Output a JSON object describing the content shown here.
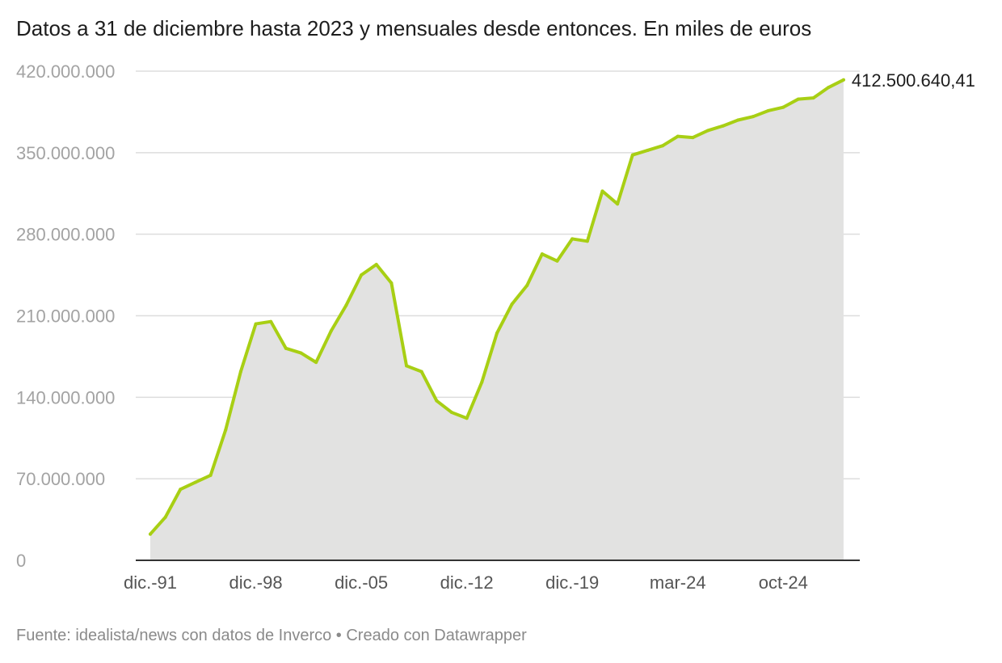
{
  "title": "Datos a 31 de diciembre hasta 2023 y mensuales desde entonces. En miles de euros",
  "footer": {
    "text": "Fuente: idealista/news con datos de Inverco • Creado con Datawrapper"
  },
  "colors": {
    "line": "#a8cf14",
    "area": "#e2e2e1",
    "grid": "#dddddd",
    "axis": "#333333"
  },
  "chart_data": {
    "type": "area",
    "title": "Datos a 31 de diciembre hasta 2023 y mensuales desde entonces. En miles de euros",
    "xlabel": "",
    "ylabel": "",
    "ylim": [
      0,
      420000000
    ],
    "yticks": [
      0,
      70000000,
      140000000,
      210000000,
      280000000,
      350000000,
      420000000
    ],
    "ytick_labels": [
      "0",
      "70.000.000",
      "140.000.000",
      "210.000.000",
      "280.000.000",
      "350.000.000",
      "420.000.000"
    ],
    "grid": true,
    "xtick_labels": [
      {
        "label": "dic.-91",
        "index": 0
      },
      {
        "label": "dic.-98",
        "index": 7
      },
      {
        "label": "dic.-05",
        "index": 14
      },
      {
        "label": "dic.-12",
        "index": 21
      },
      {
        "label": "dic.-19",
        "index": 28
      },
      {
        "label": "mar-24",
        "index": 35
      },
      {
        "label": "oct-24",
        "index": 42
      }
    ],
    "end_label": "412.500.640,41",
    "series": [
      {
        "values": [
          22500000,
          37000000,
          61000000,
          67000000,
          73000000,
          112000000,
          162000000,
          203000000,
          205000000,
          182000000,
          178000000,
          170000000,
          197000000,
          219000000,
          245000000,
          254000000,
          238000000,
          167000000,
          162000000,
          137000000,
          127000000,
          122000000,
          153000000,
          195000000,
          220000000,
          236000000,
          263000000,
          257000000,
          276000000,
          274000000,
          317000000,
          306000000,
          348000000,
          352000000,
          356000000,
          364000000,
          363000000,
          369000000,
          373000000,
          378000000,
          381000000,
          386000000,
          389000000,
          396000000,
          397000000,
          406000000,
          412500640.41
        ]
      }
    ]
  }
}
